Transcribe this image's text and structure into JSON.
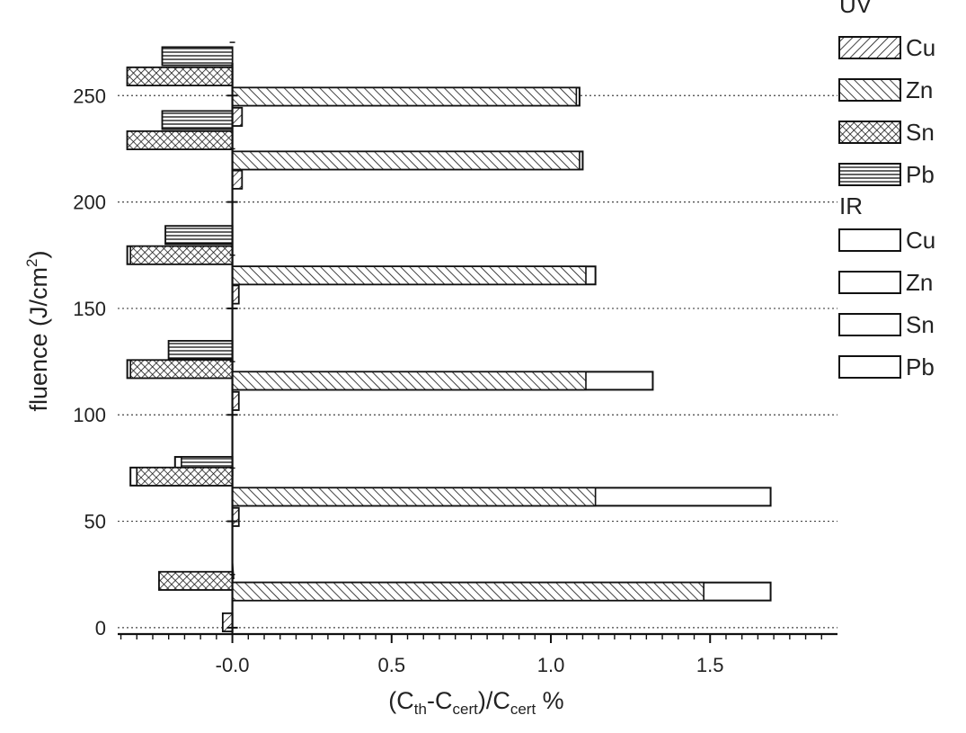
{
  "chart_data": {
    "type": "bar",
    "orientation": "horizontal",
    "title": "",
    "xlabel": "(C_th-C_cert)/C_cert %",
    "xlabel_parts": {
      "open": "(C",
      "s1": "th",
      "mid": "-C",
      "s2": "cert",
      "div": ")/C",
      "s3": "cert",
      "tail": " %"
    },
    "ylabel": "fluence (J/cm2)",
    "ylabel_parts": {
      "main": "fluence (J/cm",
      "sup": "2",
      "close": ")"
    },
    "xlim": [
      -0.36,
      1.9
    ],
    "ylim": [
      -3,
      278
    ],
    "x_ticks": [
      "-0.0",
      "0.5",
      "1.0",
      "1.5"
    ],
    "x_tick_values": [
      0,
      0.5,
      1.0,
      1.5
    ],
    "y_ticks": [
      "0",
      "50",
      "100",
      "150",
      "200",
      "250"
    ],
    "y_tick_values": [
      0,
      50,
      100,
      150,
      200,
      250
    ],
    "grid": "dotted horizontal at y ticks",
    "legend": {
      "placement": "right",
      "groups": [
        {
          "title": "UV",
          "entries": [
            {
              "label": "Cu",
              "pattern": "fwd"
            },
            {
              "label": "Zn",
              "pattern": "back"
            },
            {
              "label": "Sn",
              "pattern": "cross"
            },
            {
              "label": "Pb",
              "pattern": "horiz"
            }
          ]
        },
        {
          "title": "IR",
          "entries": [
            {
              "label": "Cu",
              "pattern": "empty"
            },
            {
              "label": "Zn",
              "pattern": "empty"
            },
            {
              "label": "Sn",
              "pattern": "empty"
            },
            {
              "label": "Pb",
              "pattern": "empty"
            }
          ]
        }
      ]
    },
    "groups": [
      {
        "fluence": 12,
        "bars": [
          {
            "element": "Pb",
            "y": 27,
            "uv": 0.0,
            "ir": 0.0
          },
          {
            "element": "Sn",
            "y": 22,
            "uv": -0.23,
            "ir": -0.23
          },
          {
            "element": "Zn",
            "y": 17,
            "uv": 1.48,
            "ir": 1.69
          },
          {
            "element": "Cu",
            "y": 2.5,
            "uv": -0.03,
            "ir": -0.03
          }
        ]
      },
      {
        "fluence": 62,
        "bars": [
          {
            "element": "Pb",
            "y": 76,
            "uv": -0.16,
            "ir": -0.18
          },
          {
            "element": "Sn",
            "y": 71,
            "uv": -0.3,
            "ir": -0.32
          },
          {
            "element": "Zn",
            "y": 61.5,
            "uv": 1.14,
            "ir": 1.69
          },
          {
            "element": "Cu",
            "y": 52,
            "uv": 0.02,
            "ir": 0.02
          }
        ]
      },
      {
        "fluence": 112,
        "bars": [
          {
            "element": "Pb",
            "y": 130.5,
            "uv": -0.2,
            "ir": -0.2
          },
          {
            "element": "Sn",
            "y": 121.5,
            "uv": -0.32,
            "ir": -0.33
          },
          {
            "element": "Zn",
            "y": 116,
            "uv": 1.11,
            "ir": 1.32
          },
          {
            "element": "Cu",
            "y": 106.5,
            "uv": 0.02,
            "ir": 0.02
          }
        ]
      },
      {
        "fluence": 164,
        "bars": [
          {
            "element": "Pb",
            "y": 184.5,
            "uv": -0.21,
            "ir": -0.21
          },
          {
            "element": "Sn",
            "y": 175,
            "uv": -0.32,
            "ir": -0.33
          },
          {
            "element": "Zn",
            "y": 165.5,
            "uv": 1.11,
            "ir": 1.14
          },
          {
            "element": "Cu",
            "y": 156.5,
            "uv": 0.02,
            "ir": 0.02
          }
        ]
      },
      {
        "fluence": 216,
        "bars": [
          {
            "element": "Pb",
            "y": 238.5,
            "uv": -0.22,
            "ir": -0.22
          },
          {
            "element": "Sn",
            "y": 229,
            "uv": -0.33,
            "ir": -0.33
          },
          {
            "element": "Zn",
            "y": 219.5,
            "uv": 1.09,
            "ir": 1.1
          },
          {
            "element": "Cu",
            "y": 210.5,
            "uv": 0.03,
            "ir": 0.03
          }
        ]
      },
      {
        "fluence": 245,
        "bars": [
          {
            "element": "Pb",
            "y": 268.5,
            "uv": -0.22,
            "ir": -0.22
          },
          {
            "element": "Sn",
            "y": 259,
            "uv": -0.33,
            "ir": -0.33
          },
          {
            "element": "Zn",
            "y": 249.5,
            "uv": 1.08,
            "ir": 1.09
          },
          {
            "element": "Cu",
            "y": 240,
            "uv": 0.03,
            "ir": 0.03
          }
        ]
      }
    ],
    "colors": {
      "ink": "#111111",
      "grid": "#444444",
      "background": "#ffffff"
    }
  }
}
